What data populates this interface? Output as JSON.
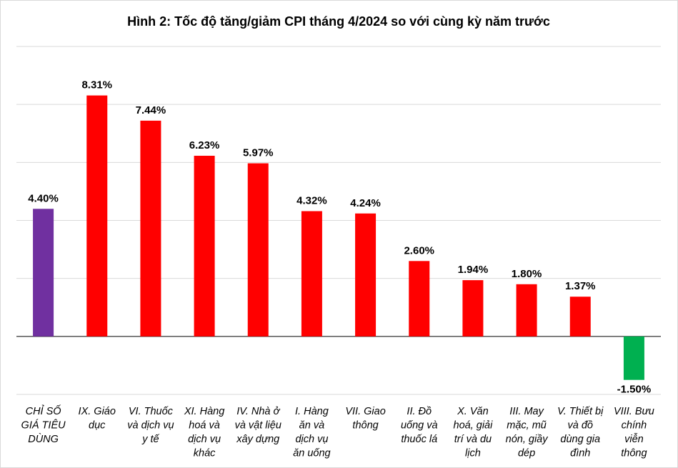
{
  "chart_data": {
    "type": "bar",
    "title": "Hình 2: Tốc độ tăng/giảm CPI tháng 4/2024 so với cùng kỳ năm trước",
    "xlabel": "",
    "ylabel": "",
    "ylim": [
      -2,
      10
    ],
    "grid": true,
    "legend": "none",
    "categories": [
      [
        "CHỈ SỐ",
        "GIÁ TIÊU",
        "DÙNG"
      ],
      [
        "IX. Giáo",
        "dục"
      ],
      [
        "VI. Thuốc",
        "và dịch vụ",
        "y tế"
      ],
      [
        "XI. Hàng",
        "hoá và",
        "dịch vụ",
        "khác"
      ],
      [
        "IV. Nhà ở",
        "và vật liệu",
        "xây dựng"
      ],
      [
        "I. Hàng",
        "ăn và",
        "dịch vụ",
        "ăn uống"
      ],
      [
        "VII. Giao",
        "thông"
      ],
      [
        "II. Đồ",
        "uống và",
        "thuốc lá"
      ],
      [
        "X. Văn",
        "hoá, giải",
        "trí và du",
        "lịch"
      ],
      [
        "III. May",
        "mặc, mũ",
        "nón, giầy",
        "dép"
      ],
      [
        "V. Thiết bị",
        "và đồ",
        "dùng gia",
        "đình"
      ],
      [
        "VIII. Bưu",
        "chính",
        "viễn",
        "thông"
      ]
    ],
    "values": [
      4.4,
      8.31,
      7.44,
      6.23,
      5.97,
      4.32,
      4.24,
      2.6,
      1.94,
      1.8,
      1.37,
      -1.5
    ],
    "data_labels": [
      "4.40%",
      "8.31%",
      "7.44%",
      "6.23%",
      "5.97%",
      "4.32%",
      "4.24%",
      "2.60%",
      "1.94%",
      "1.80%",
      "1.37%",
      "-1.50%"
    ],
    "colors": {
      "overall": "#7030a0",
      "positive": "#ff0000",
      "negative": "#00b050",
      "grid": "#d9d9d9",
      "axis": "#000000"
    }
  }
}
